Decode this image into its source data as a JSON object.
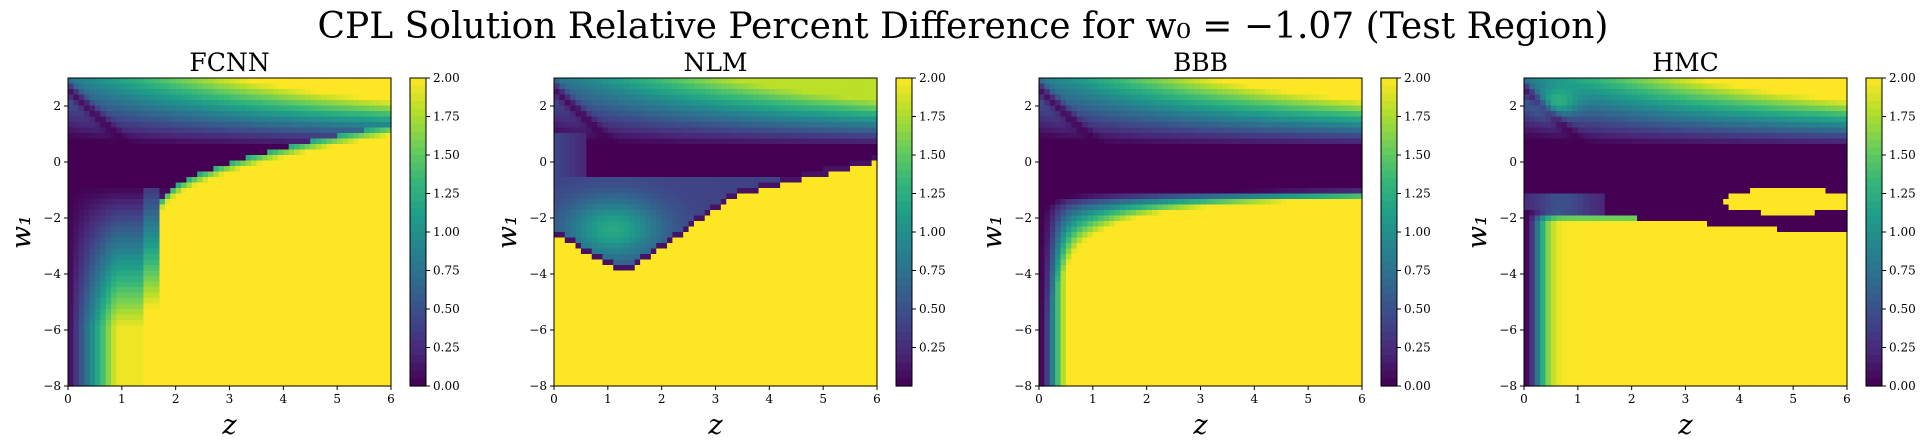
{
  "figure": {
    "suptitle": "CPL Solution Relative Percent Difference for w₀ = −1.07 (Test Region)"
  },
  "colormap": {
    "name": "viridis",
    "stops": [
      "#440154",
      "#482878",
      "#3e4989",
      "#31688e",
      "#26828e",
      "#1f9e89",
      "#35b779",
      "#6ece58",
      "#b5de2b",
      "#fde725"
    ]
  },
  "chart_data": [
    {
      "type": "heatmap",
      "title": "FCNN",
      "xlabel": "z",
      "ylabel": "w₁",
      "xlim": [
        0,
        6
      ],
      "ylim": [
        -8,
        3
      ],
      "x_ticks": [
        "0",
        "1",
        "2",
        "3",
        "4",
        "5",
        "6"
      ],
      "y_ticks": [
        "−8",
        "−6",
        "−4",
        "−2",
        "0",
        "2"
      ],
      "clim": [
        0,
        2
      ],
      "colorbar_ticks": [
        "0.00",
        "0.25",
        "0.50",
        "0.75",
        "1.00",
        "1.25",
        "1.50",
        "1.75",
        "2.00"
      ]
    },
    {
      "type": "heatmap",
      "title": "NLM",
      "xlabel": "z",
      "ylabel": "w₁",
      "xlim": [
        0,
        6
      ],
      "ylim": [
        -8,
        3
      ],
      "x_ticks": [
        "0",
        "1",
        "2",
        "3",
        "4",
        "5",
        "6"
      ],
      "y_ticks": [
        "−8",
        "−6",
        "−4",
        "−2",
        "0",
        "2"
      ],
      "clim": [
        0,
        2
      ],
      "colorbar_ticks": [
        "0.25",
        "0.50",
        "0.75",
        "1.00",
        "1.25",
        "1.50",
        "1.75",
        "2.00"
      ]
    },
    {
      "type": "heatmap",
      "title": "BBB",
      "xlabel": "z",
      "ylabel": "w₁",
      "xlim": [
        0,
        6
      ],
      "ylim": [
        -8,
        3
      ],
      "x_ticks": [
        "0",
        "1",
        "2",
        "3",
        "4",
        "5",
        "6"
      ],
      "y_ticks": [
        "−8",
        "−6",
        "−4",
        "−2",
        "0",
        "2"
      ],
      "clim": [
        0,
        2
      ],
      "colorbar_ticks": [
        "0.00",
        "0.25",
        "0.50",
        "0.75",
        "1.00",
        "1.25",
        "1.50",
        "1.75",
        "2.00"
      ]
    },
    {
      "type": "heatmap",
      "title": "HMC",
      "xlabel": "z",
      "ylabel": "w₁",
      "xlim": [
        0,
        6
      ],
      "ylim": [
        -8,
        3
      ],
      "x_ticks": [
        "0",
        "1",
        "2",
        "3",
        "4",
        "5",
        "6"
      ],
      "y_ticks": [
        "−8",
        "−6",
        "−4",
        "−2",
        "0",
        "2"
      ],
      "clim": [
        0,
        2
      ],
      "colorbar_ticks": [
        "0.00",
        "0.25",
        "0.50",
        "0.75",
        "1.00",
        "1.25",
        "1.50",
        "1.75",
        "2.00"
      ]
    }
  ]
}
